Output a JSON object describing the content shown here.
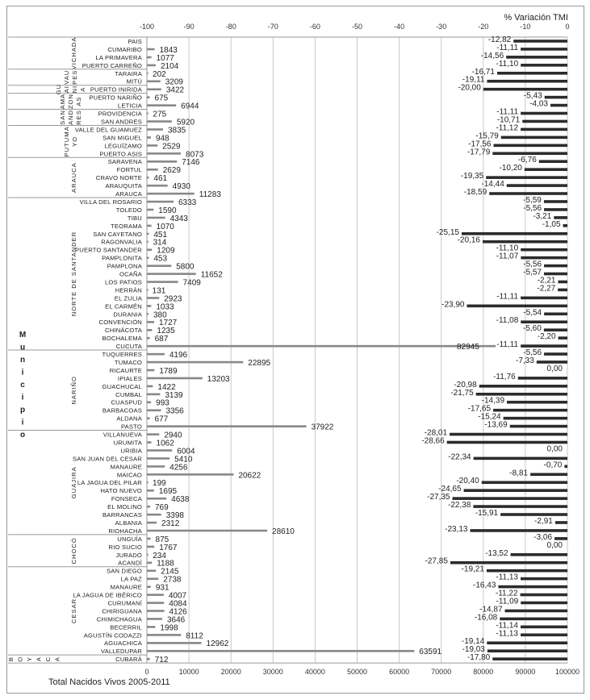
{
  "chart_data": {
    "type": "bar",
    "title_top": "% Variación TMI",
    "title_bottom": "Total Nacidos Vivos 2005-2011",
    "ylabel": "Municipio",
    "top_axis": {
      "label": "% Variación TMI",
      "range": [
        -100,
        0
      ],
      "ticks": [
        "-100",
        "-90",
        "-80",
        "-70",
        "-60",
        "-50",
        "-40",
        "-30",
        "-20",
        "-10",
        "0"
      ]
    },
    "bottom_axis": {
      "label": "Total Nacidos Vivos 2005-2011",
      "range": [
        0,
        100000
      ],
      "ticks": [
        "0",
        "10000",
        "20000",
        "30000",
        "40000",
        "50000",
        "60000",
        "70000",
        "80000",
        "90000",
        "100000"
      ]
    },
    "grid": true,
    "groups": [
      {
        "name": "VICHADA",
        "rows": [
          {
            "name": "PAIS",
            "births": null,
            "tmi": -12.82,
            "tmi_label": "-12,82"
          },
          {
            "name": "CUMARIBO",
            "births": 1843,
            "tmi": -11.11,
            "tmi_label": "-11,11"
          },
          {
            "name": "LA PRIMAVERA",
            "births": 1077,
            "tmi": -14.56,
            "tmi_label": "-14,56"
          },
          {
            "name": "PUERTO CARREÑO",
            "births": 2104,
            "tmi": -11.1,
            "tmi_label": "-11,10"
          }
        ]
      },
      {
        "name": "VAUPES",
        "label_lines": [
          "VAU",
          "PES"
        ],
        "rows": [
          {
            "name": "TARAIRA",
            "births": 202,
            "tmi": -16.71,
            "tmi_label": "-16,71"
          },
          {
            "name": "MITÚ",
            "births": 3209,
            "tmi": -19.11,
            "tmi_label": "-19,11"
          }
        ]
      },
      {
        "name": "GUAINIA",
        "label_lines": [
          "GU",
          "AI",
          "NI",
          "A"
        ],
        "rows": [
          {
            "name": "PUERTO INIRIDA",
            "births": 3422,
            "tmi": -20.0,
            "tmi_label": "-20,00"
          }
        ]
      },
      {
        "name": "AMAZONAS",
        "label_lines": [
          "AMA",
          "ZON",
          "AS"
        ],
        "rows": [
          {
            "name": "PUERTO NARIÑO",
            "births": 675,
            "tmi": -5.43,
            "tmi_label": "-5,43"
          },
          {
            "name": "LETICIA",
            "births": 6944,
            "tmi": -4.03,
            "tmi_label": "-4,03"
          }
        ]
      },
      {
        "name": "SAN ANDRES",
        "label_lines": [
          "SAN",
          "AND",
          "RES"
        ],
        "rows": [
          {
            "name": "PROVIDENCIA",
            "births": 275,
            "tmi": -11.11,
            "tmi_label": "-11,11"
          },
          {
            "name": "SAN ANDRES",
            "births": 5920,
            "tmi": -10.71,
            "tmi_label": "-10,71"
          }
        ]
      },
      {
        "name": "PUTUMAYO",
        "label_lines": [
          "PUTUMA",
          "YO"
        ],
        "rows": [
          {
            "name": "VALLE DEL GUAMUEZ",
            "births": 3835,
            "tmi": -11.12,
            "tmi_label": "-11,12"
          },
          {
            "name": "SAN MIGUEL",
            "births": 948,
            "tmi": -15.79,
            "tmi_label": "-15,79"
          },
          {
            "name": "LEGUÍZAMO",
            "births": 2529,
            "tmi": -17.56,
            "tmi_label": "-17,56"
          },
          {
            "name": "PUERTO ASIS",
            "births": 8073,
            "tmi": -17.79,
            "tmi_label": "-17,79"
          }
        ]
      },
      {
        "name": "ARAUCA",
        "rows": [
          {
            "name": "SARAVENA",
            "births": 7146,
            "tmi": -6.76,
            "tmi_label": "-6,76"
          },
          {
            "name": "FORTUL",
            "births": 2629,
            "tmi": -10.2,
            "tmi_label": "-10,20"
          },
          {
            "name": "CRAVO NORTE",
            "births": 461,
            "tmi": -19.35,
            "tmi_label": "-19,35"
          },
          {
            "name": "ARAUQUITA",
            "births": 4930,
            "tmi": -14.44,
            "tmi_label": "-14,44"
          },
          {
            "name": "ARAUCA",
            "births": 11283,
            "tmi": -18.59,
            "tmi_label": "-18,59"
          }
        ]
      },
      {
        "name": "NORTE DE SANTANDER",
        "rows": [
          {
            "name": "VILLA DEL ROSARIO",
            "births": 6333,
            "tmi": -5.59,
            "tmi_label": "-5,59"
          },
          {
            "name": "TOLEDO",
            "births": 1590,
            "tmi": -5.56,
            "tmi_label": "-5,56"
          },
          {
            "name": "TIBU",
            "births": 4343,
            "tmi": -3.21,
            "tmi_label": "-3,21"
          },
          {
            "name": "TEORAMA",
            "births": 1070,
            "tmi": -1.05,
            "tmi_label": "-1,05"
          },
          {
            "name": "SAN CAYETANO",
            "births": 451,
            "tmi": -25.15,
            "tmi_label": "-25,15"
          },
          {
            "name": "RAGONVALIA",
            "births": 314,
            "tmi": -20.16,
            "tmi_label": "-20,16"
          },
          {
            "name": "PUERTO SANTANDER",
            "births": 1209,
            "tmi": -11.1,
            "tmi_label": "-11,10"
          },
          {
            "name": "PAMPLONITA",
            "births": 453,
            "tmi": -11.07,
            "tmi_label": "-11,07"
          },
          {
            "name": "PAMPLONA",
            "births": 5800,
            "tmi": -5.56,
            "tmi_label": "-5,56"
          },
          {
            "name": "OCAÑA",
            "births": 11652,
            "tmi": -5.57,
            "tmi_label": "-5,57"
          },
          {
            "name": "LOS PATIOS",
            "births": 7409,
            "tmi": -2.21,
            "tmi_label": "-2,21"
          },
          {
            "name": "HERRÁN",
            "births": 131,
            "tmi": -2.27,
            "tmi_label": "-2,27"
          },
          {
            "name": "EL ZULIA",
            "births": 2923,
            "tmi": -11.11,
            "tmi_label": "-11,11"
          },
          {
            "name": "EL CARMÉN",
            "births": 1033,
            "tmi": -23.9,
            "tmi_label": "-23,90"
          },
          {
            "name": "DURANIA",
            "births": 380,
            "tmi": -5.54,
            "tmi_label": "-5,54"
          },
          {
            "name": "CONVENCIÓN",
            "births": 1727,
            "tmi": -11.08,
            "tmi_label": "-11,08"
          },
          {
            "name": "CHINÁCOTA",
            "births": 1235,
            "tmi": -5.6,
            "tmi_label": "-5,60"
          },
          {
            "name": "BOCHALEMA",
            "births": 687,
            "tmi": -2.2,
            "tmi_label": "-2,20"
          },
          {
            "name": "CUCUTA",
            "births": 82945,
            "tmi": -11.11,
            "tmi_label": "-11,11"
          }
        ]
      },
      {
        "name": "NARIÑO",
        "rows": [
          {
            "name": "TUQUERRES",
            "births": 4196,
            "tmi": -5.56,
            "tmi_label": "-5,56"
          },
          {
            "name": "TUMACO",
            "births": 22895,
            "tmi": -7.33,
            "tmi_label": "-7,33"
          },
          {
            "name": "RICAURTE",
            "births": 1789,
            "tmi": 0.0,
            "tmi_label": "0,00"
          },
          {
            "name": "IPIALES",
            "births": 13203,
            "tmi": -11.76,
            "tmi_label": "-11,76"
          },
          {
            "name": "GUACHUCAL",
            "births": 1422,
            "tmi": -20.98,
            "tmi_label": "-20,98"
          },
          {
            "name": "CUMBAL",
            "births": 3139,
            "tmi": -21.75,
            "tmi_label": "-21,75"
          },
          {
            "name": "CUASPUD",
            "births": 993,
            "tmi": -14.39,
            "tmi_label": "-14,39"
          },
          {
            "name": "BARBACOAS",
            "births": 3356,
            "tmi": -17.65,
            "tmi_label": "-17,65"
          },
          {
            "name": "ALDANA",
            "births": 677,
            "tmi": -15.24,
            "tmi_label": "-15,24"
          },
          {
            "name": "PASTO",
            "births": 37922,
            "tmi": -13.69,
            "tmi_label": "-13,69"
          }
        ]
      },
      {
        "name": "GUAJIRA",
        "rows": [
          {
            "name": "VILLANUEVA",
            "births": 2940,
            "tmi": -28.01,
            "tmi_label": "-28,01"
          },
          {
            "name": "URUMITA",
            "births": 1062,
            "tmi": -28.66,
            "tmi_label": "-28,66"
          },
          {
            "name": "URIBIA",
            "births": 6004,
            "tmi": 0.0,
            "tmi_label": "0,00"
          },
          {
            "name": "SAN JUAN DEL CESAR",
            "births": 5410,
            "tmi": -22.34,
            "tmi_label": "-22,34"
          },
          {
            "name": "MANAURE",
            "births": 4256,
            "tmi": -0.7,
            "tmi_label": "-0,70"
          },
          {
            "name": "MAICAO",
            "births": 20622,
            "tmi": -8.81,
            "tmi_label": "-8,81"
          },
          {
            "name": "LA JAGUA DEL PILAR",
            "births": 199,
            "tmi": -20.4,
            "tmi_label": "-20,40"
          },
          {
            "name": "HATO NUEVO",
            "births": 1695,
            "tmi": -24.65,
            "tmi_label": "-24,65"
          },
          {
            "name": "FONSECA",
            "births": 4638,
            "tmi": -27.35,
            "tmi_label": "-27,35"
          },
          {
            "name": "EL MOLINO",
            "births": 769,
            "tmi": -22.38,
            "tmi_label": "-22,38"
          },
          {
            "name": "BARRANCAS",
            "births": 3398,
            "tmi": -15.91,
            "tmi_label": "-15,91"
          },
          {
            "name": "ALBANIA",
            "births": 2312,
            "tmi": -2.91,
            "tmi_label": "-2,91"
          },
          {
            "name": "RIOHACHA",
            "births": 28610,
            "tmi": -23.13,
            "tmi_label": "-23,13"
          }
        ]
      },
      {
        "name": "CHOCÓ",
        "rows": [
          {
            "name": "UNGUÍA",
            "births": 875,
            "tmi": -3.06,
            "tmi_label": "-3,06"
          },
          {
            "name": "RIO SUCIO",
            "births": 1767,
            "tmi": 0.0,
            "tmi_label": "0,00"
          },
          {
            "name": "JURADÓ",
            "births": 234,
            "tmi": -13.52,
            "tmi_label": "-13,52"
          },
          {
            "name": "ACANDÍ",
            "births": 1188,
            "tmi": -27.85,
            "tmi_label": "-27,85"
          }
        ]
      },
      {
        "name": "CESAR",
        "rows": [
          {
            "name": "SAN DIEGO",
            "births": 2145,
            "tmi": -19.21,
            "tmi_label": "-19,21"
          },
          {
            "name": "LA PAZ",
            "births": 2738,
            "tmi": -11.13,
            "tmi_label": "-11,13"
          },
          {
            "name": "MANAURE",
            "births": 931,
            "tmi": -16.43,
            "tmi_label": "-16,43"
          },
          {
            "name": "LA JAGUA DE IBÉRICO",
            "births": 4007,
            "tmi": -11.22,
            "tmi_label": "-11,22"
          },
          {
            "name": "CURUMANÍ",
            "births": 4084,
            "tmi": -11.09,
            "tmi_label": "-11,09"
          },
          {
            "name": "CHIRIGUANA",
            "births": 4126,
            "tmi": -14.87,
            "tmi_label": "-14,87"
          },
          {
            "name": "CHIMICHAGUA",
            "births": 3646,
            "tmi": -16.08,
            "tmi_label": "-16,08"
          },
          {
            "name": "BECERRIL",
            "births": 1998,
            "tmi": -11.14,
            "tmi_label": "-11,14"
          },
          {
            "name": "AGUSTÍN CODAZZI",
            "births": 8112,
            "tmi": -11.13,
            "tmi_label": "-11,13"
          },
          {
            "name": "AGUACHICA",
            "births": 12962,
            "tmi": -19.14,
            "tmi_label": "-19,14"
          },
          {
            "name": "VALLEDUPAR",
            "births": 63591,
            "tmi": -19.03,
            "tmi_label": "-19,03"
          }
        ]
      },
      {
        "name": "BOYACA",
        "rotated_letters": true,
        "rows": [
          {
            "name": "CUBARÁ",
            "births": 712,
            "tmi": -17.8,
            "tmi_label": "-17,80"
          }
        ]
      }
    ],
    "colors": {
      "births_bar": "#888888",
      "tmi_bar": "#2b2b2b",
      "grid": "#c8c8c8"
    }
  }
}
